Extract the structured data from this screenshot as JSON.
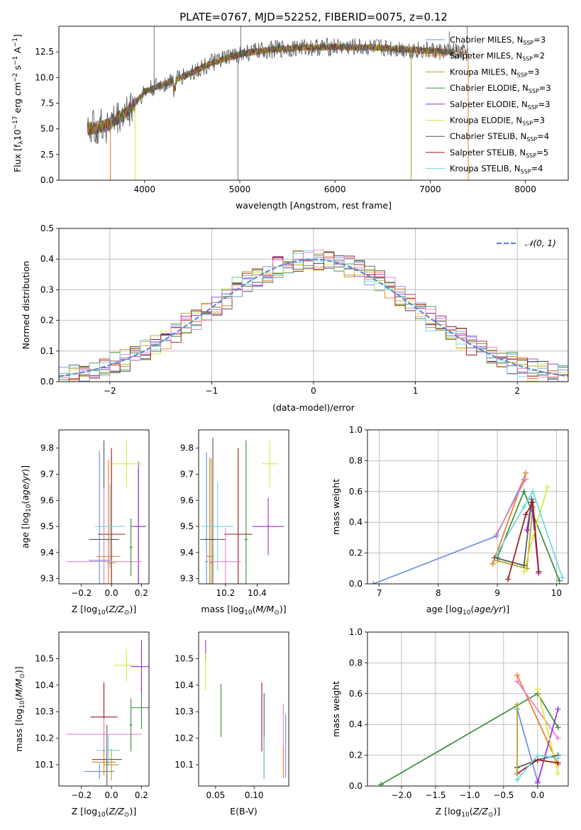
{
  "figure": {
    "title": "PLATE=0767, MJD=52252, FIBERID=0075, z=0.12"
  },
  "colors": {
    "chabrier_miles": "#6a8ee0",
    "salpeter_miles": "#ef7a1d",
    "kroupa_miles": "#b3a02a",
    "chabrier_elodie": "#3b8c3b",
    "salpeter_elodie": "#9b2ec9",
    "kroupa_elodie": "#d4ea3c",
    "chabrier_stelib": "#555555",
    "salpeter_stelib": "#a01818",
    "kroupa_stelib": "#6fd6e0",
    "normal": "#5b8ad8",
    "grid": "#b0b0b0"
  },
  "chart_data": [
    {
      "id": "spectrum",
      "type": "line",
      "title": "",
      "xlabel": "wavelength [Angstrom, rest frame]",
      "ylabel": "Flux [f_λ 10^-17 erg cm^-2 s^-1 A^-1]",
      "xlim": [
        3100,
        8450
      ],
      "ylim": [
        0,
        15
      ],
      "xticks": [
        4000,
        5000,
        6000,
        7000,
        8000
      ],
      "yticks": [
        0.0,
        2.5,
        5.0,
        7.5,
        10.0,
        12.5
      ],
      "grid": false,
      "legend_position": "top-right",
      "legend": [
        {
          "text": "Chabrier MILES, N_SSP=3",
          "color_key": "chabrier_miles"
        },
        {
          "text": "Salpeter MILES, N_SSP=2",
          "color_key": "salpeter_miles"
        },
        {
          "text": "Kroupa MILES, N_SSP=3",
          "color_key": "kroupa_miles"
        },
        {
          "text": "Chabrier ELODIE, N_SSP=3",
          "color_key": "chabrier_elodie"
        },
        {
          "text": "Salpeter ELODIE, N_SSP=3",
          "color_key": "salpeter_elodie"
        },
        {
          "text": "Kroupa ELODIE, N_SSP=3",
          "color_key": "kroupa_elodie"
        },
        {
          "text": "Chabrier STELIB, N_SSP=4",
          "color_key": "chabrier_stelib"
        },
        {
          "text": "Salpeter STELIB, N_SSP=5",
          "color_key": "salpeter_stelib"
        },
        {
          "text": "Kroupa STELIB, N_SSP=4",
          "color_key": "kroupa_stelib"
        }
      ],
      "continuum": {
        "x": [
          3400,
          3600,
          3800,
          3900,
          4000,
          4100,
          4300,
          4500,
          4700,
          5000,
          5300,
          5600,
          6000,
          6500,
          7000,
          7400
        ],
        "y": [
          5.0,
          5.3,
          6.5,
          7.5,
          8.6,
          9.0,
          9.7,
          10.5,
          11.4,
          12.3,
          12.7,
          12.9,
          13.0,
          12.9,
          12.6,
          12.4
        ]
      },
      "data_spikes": [
        {
          "x": 4100,
          "y": 15
        },
        {
          "x": 4980,
          "y": 0
        },
        {
          "x": 5010,
          "y": 15
        },
        {
          "x": 7200,
          "y": 14.5
        },
        {
          "x": 7390,
          "y": 15
        }
      ]
    },
    {
      "id": "residuals",
      "type": "histogram",
      "title": "",
      "xlabel": "(data-model)/error",
      "ylabel": "Normed distribution",
      "xlim": [
        -2.5,
        2.5
      ],
      "ylim": [
        0,
        0.5
      ],
      "xticks": [
        -2,
        -1,
        0,
        1,
        2
      ],
      "xticklabels": [
        "−2",
        "−1",
        "0",
        "1",
        "2"
      ],
      "yticks": [
        0.0,
        0.1,
        0.2,
        0.3,
        0.4,
        0.5
      ],
      "grid": true,
      "legend_position": "top-right",
      "bin_width": 0.1,
      "reference": {
        "label": "N(0,1)",
        "color_key": "normal"
      }
    },
    {
      "id": "age_vs_Z",
      "type": "errorbar",
      "xlabel": "Z [log10(Z/Z⊙)]",
      "ylabel": "age [log10(age/yr)]",
      "xlim": [
        -0.35,
        0.25
      ],
      "ylim": [
        9.28,
        9.87
      ],
      "xticks": [
        -0.2,
        0.0,
        0.2
      ],
      "xticklabels": [
        "−0.2",
        "0.0",
        "0.2"
      ],
      "yticks": [
        9.3,
        9.4,
        9.5,
        9.6,
        9.7,
        9.8
      ],
      "grid": false,
      "points": [
        {
          "c": "chabrier_miles",
          "x": -0.08,
          "xe": 0.07,
          "y": 9.37,
          "ye": 0.42
        },
        {
          "c": "salpeter_miles",
          "x": -0.02,
          "xe": 0.08,
          "y": 9.385,
          "ye": 0.37
        },
        {
          "c": "kroupa_miles",
          "x": 0.0,
          "xe": 0.03,
          "y": 9.36,
          "ye": 0.4
        },
        {
          "c": "chabrier_elodie",
          "x": 0.18,
          "xe": 0.05,
          "y": 9.5,
          "ye": 0.22
        },
        {
          "c": "salpeter_elodie",
          "x": 0.18,
          "xe": 0.05,
          "y": 9.5,
          "ye": 0.25
        },
        {
          "c": "kroupa_elodie",
          "x": 0.1,
          "xe": 0.1,
          "y": 9.74,
          "ye": 0.09
        },
        {
          "c": "chabrier_stelib",
          "x": -0.05,
          "xe": 0.1,
          "y": 9.45,
          "ye": 0.38
        },
        {
          "c": "salpeter_stelib",
          "x": 0.0,
          "xe": 0.09,
          "y": 9.47,
          "ye": 0.33
        },
        {
          "c": "kroupa_stelib",
          "x": -0.01,
          "xe": 0.1,
          "y": 9.5,
          "ye": 0.16
        },
        {
          "c": "pink",
          "x": -0.05,
          "xe": 0.25,
          "y": 9.365,
          "ye": 0.28
        },
        {
          "c": "chabrier_elodie",
          "x": 0.13,
          "xe": 0.01,
          "y": 9.42,
          "ye": 0.11
        }
      ]
    },
    {
      "id": "age_vs_mass",
      "type": "errorbar",
      "xlabel": "mass [log10(M/M⊙)]",
      "ylabel": "",
      "xlim": [
        10.03,
        10.6
      ],
      "ylim": [
        9.28,
        9.87
      ],
      "xticks": [
        10.2,
        10.4
      ],
      "yticks": [
        9.3,
        9.4,
        9.5,
        9.6,
        9.7,
        9.8
      ],
      "grid": false,
      "points": [
        {
          "c": "chabrier_miles",
          "x": 10.08,
          "xe": 0.01,
          "y": 9.365,
          "ye": 0.42
        },
        {
          "c": "salpeter_miles",
          "x": 10.1,
          "xe": 0.02,
          "y": 9.385,
          "ye": 0.38
        },
        {
          "c": "kroupa_miles",
          "x": 10.11,
          "xe": 0.01,
          "y": 9.36,
          "ye": 0.4
        },
        {
          "c": "chabrier_elodie",
          "x": 10.33,
          "xe": 0.01,
          "y": 9.45,
          "ye": 0.38
        },
        {
          "c": "salpeter_elodie",
          "x": 10.47,
          "xe": 0.1,
          "y": 9.5,
          "ye": 0.11
        },
        {
          "c": "kroupa_elodie",
          "x": 10.48,
          "xe": 0.05,
          "y": 9.74,
          "ye": 0.09
        },
        {
          "c": "chabrier_stelib",
          "x": 10.12,
          "xe": 0.08,
          "y": 9.45,
          "ye": 0.39
        },
        {
          "c": "salpeter_stelib",
          "x": 10.28,
          "xe": 0.09,
          "y": 9.47,
          "ye": 0.33
        },
        {
          "c": "kroupa_stelib",
          "x": 10.15,
          "xe": 0.1,
          "y": 9.5,
          "ye": 0.17
        },
        {
          "c": "pink",
          "x": 10.2,
          "xe": 0.1,
          "y": 9.365,
          "ye": 0.13
        }
      ]
    },
    {
      "id": "weight_vs_age",
      "type": "line",
      "xlabel": "age [log10(age/yr)]",
      "ylabel": "mass weight",
      "xlim": [
        6.8,
        10.2
      ],
      "ylim": [
        0,
        1
      ],
      "xticks": [
        7,
        8,
        9,
        10
      ],
      "yticks": [
        0.0,
        0.2,
        0.4,
        0.6,
        0.8,
        1.0
      ],
      "grid": true,
      "series": [
        {
          "c": "chabrier_miles",
          "x": [
            6.9,
            8.98,
            9.45
          ],
          "y": [
            0.0,
            0.31,
            0.68
          ]
        },
        {
          "c": "salpeter_miles",
          "x": [
            8.92,
            9.48
          ],
          "y": [
            0.13,
            0.72
          ]
        },
        {
          "c": "kroupa_miles",
          "x": [
            9.0,
            9.5,
            9.6
          ],
          "y": [
            0.15,
            0.1,
            0.5
          ]
        },
        {
          "c": "chabrier_elodie",
          "x": [
            9.0,
            9.45,
            10.05
          ],
          "y": [
            0.17,
            0.6,
            0.02
          ]
        },
        {
          "c": "salpeter_elodie",
          "x": [
            9.5,
            9.58,
            9.7
          ],
          "y": [
            0.35,
            0.53,
            0.07
          ]
        },
        {
          "c": "kroupa_elodie",
          "x": [
            9.45,
            9.6,
            9.85
          ],
          "y": [
            0.08,
            0.3,
            0.63
          ]
        },
        {
          "c": "chabrier_stelib",
          "x": [
            8.95,
            9.45,
            9.58
          ],
          "y": [
            0.17,
            0.12,
            0.55
          ]
        },
        {
          "c": "salpeter_stelib",
          "x": [
            9.18,
            9.48,
            9.6,
            9.7
          ],
          "y": [
            0.03,
            0.45,
            0.53,
            0.08
          ]
        },
        {
          "c": "kroupa_stelib",
          "x": [
            9.0,
            9.45,
            9.6,
            10.1
          ],
          "y": [
            0.2,
            0.5,
            0.6,
            0.04
          ]
        },
        {
          "c": "pink",
          "x": [
            8.98,
            9.48
          ],
          "y": [
            0.32,
            0.68
          ]
        }
      ]
    },
    {
      "id": "mass_vs_Z",
      "type": "errorbar",
      "xlabel": "Z [log10(Z/Z⊙)]",
      "ylabel": "mass [log10(M/M⊙)]",
      "xlim": [
        -0.35,
        0.25
      ],
      "ylim": [
        10.02,
        10.6
      ],
      "xticks": [
        -0.2,
        0.0,
        0.2
      ],
      "xticklabels": [
        "−0.2",
        "0.0",
        "0.2"
      ],
      "yticks": [
        10.1,
        10.2,
        10.3,
        10.4,
        10.5
      ],
      "grid": false,
      "points": [
        {
          "c": "chabrier_miles",
          "x": -0.08,
          "xe": 0.1,
          "y": 10.075,
          "ye": 0.03
        },
        {
          "c": "salpeter_miles",
          "x": -0.05,
          "xe": 0.08,
          "y": 10.11,
          "ye": 0.05
        },
        {
          "c": "kroupa_miles",
          "x": 0.0,
          "xe": 0.05,
          "y": 10.1,
          "ye": 0.06
        },
        {
          "c": "chabrier_elodie",
          "x": 0.2,
          "xe": 0.07,
          "y": 10.315,
          "ye": 0.08
        },
        {
          "c": "salpeter_elodie",
          "x": 0.2,
          "xe": 0.07,
          "y": 10.47,
          "ye": 0.1
        },
        {
          "c": "kroupa_elodie",
          "x": 0.1,
          "xe": 0.08,
          "y": 10.475,
          "ye": 0.06
        },
        {
          "c": "chabrier_stelib",
          "x": -0.03,
          "xe": 0.1,
          "y": 10.12,
          "ye": 0.13
        },
        {
          "c": "salpeter_stelib",
          "x": -0.05,
          "xe": 0.09,
          "y": 10.28,
          "ye": 0.13
        },
        {
          "c": "kroupa_stelib",
          "x": -0.02,
          "xe": 0.08,
          "y": 10.155,
          "ye": 0.06
        },
        {
          "c": "pink",
          "x": -0.05,
          "xe": 0.25,
          "y": 10.215,
          "ye": 0.06
        },
        {
          "c": "chabrier_elodie",
          "x": 0.13,
          "xe": 0.01,
          "y": 10.25,
          "ye": 0.1
        }
      ]
    },
    {
      "id": "mass_vs_ebv",
      "type": "errorbar",
      "xlabel": "E(B-V)",
      "ylabel": "",
      "xlim": [
        0.028,
        0.145
      ],
      "ylim": [
        10.02,
        10.6
      ],
      "xticks": [
        0.05,
        0.1
      ],
      "xticklabels": [
        "0.05",
        "0.10"
      ],
      "yticks": [
        10.1,
        10.2,
        10.3,
        10.4,
        10.5
      ],
      "grid": false,
      "points": [
        {
          "c": "salpeter_elodie",
          "x": 0.037,
          "xe": 0.0,
          "y": 10.53,
          "ye": 0.04
        },
        {
          "c": "kroupa_elodie",
          "x": 0.037,
          "xe": 0.0,
          "y": 10.45,
          "ye": 0.07
        },
        {
          "c": "chabrier_elodie",
          "x": 0.057,
          "xe": 0.0,
          "y": 10.305,
          "ye": 0.1
        },
        {
          "c": "salpeter_stelib",
          "x": 0.11,
          "xe": 0.0,
          "y": 10.28,
          "ye": 0.13
        },
        {
          "c": "chabrier_stelib",
          "x": 0.113,
          "xe": 0.0,
          "y": 10.21,
          "ye": 0.16
        },
        {
          "c": "kroupa_stelib",
          "x": 0.113,
          "xe": 0.0,
          "y": 10.125,
          "ye": 0.08
        },
        {
          "c": "pink",
          "x": 0.138,
          "xe": 0.0,
          "y": 10.22,
          "ye": 0.11
        },
        {
          "c": "salpeter_miles",
          "x": 0.138,
          "xe": 0.0,
          "y": 10.11,
          "ye": 0.06
        },
        {
          "c": "chabrier_miles",
          "x": 0.141,
          "xe": 0.0,
          "y": 10.17,
          "ye": 0.12
        }
      ]
    },
    {
      "id": "weight_vs_Z",
      "type": "line",
      "xlabel": "Z [log10(Z/Z⊙)]",
      "ylabel": "mass weight",
      "xlim": [
        -2.5,
        0.45
      ],
      "ylim": [
        0,
        1
      ],
      "xticks": [
        -2.0,
        -1.5,
        -1.0,
        -0.5,
        0.0
      ],
      "xticklabels": [
        "−2.0",
        "−1.5",
        "−1.0",
        "−0.5",
        "0.0"
      ],
      "yticks": [
        0.0,
        0.2,
        0.4,
        0.6,
        0.8,
        1.0
      ],
      "grid": true,
      "series": [
        {
          "c": "chabrier_elodie",
          "x": [
            -2.3,
            0.0,
            0.3
          ],
          "y": [
            0.01,
            0.6,
            0.38
          ]
        },
        {
          "c": "chabrier_miles",
          "x": [
            -0.3,
            0.0
          ],
          "y": [
            0.5,
            0.03
          ]
        },
        {
          "c": "salpeter_miles",
          "x": [
            -0.3,
            0.3
          ],
          "y": [
            0.72,
            0.14
          ]
        },
        {
          "c": "pink",
          "x": [
            -0.3,
            0.3
          ],
          "y": [
            0.68,
            0.31
          ]
        },
        {
          "c": "salpeter_elodie",
          "x": [
            0.0,
            0.3
          ],
          "y": [
            0.02,
            0.5
          ]
        },
        {
          "c": "kroupa_elodie",
          "x": [
            0.0,
            0.3
          ],
          "y": [
            0.63,
            0.08
          ]
        },
        {
          "c": "chabrier_stelib",
          "x": [
            -0.3,
            0.0,
            0.3
          ],
          "y": [
            0.12,
            0.17,
            0.2
          ]
        },
        {
          "c": "salpeter_stelib",
          "x": [
            -0.3,
            0.0,
            0.3
          ],
          "y": [
            0.08,
            0.17,
            0.15
          ]
        },
        {
          "c": "kroupa_stelib",
          "x": [
            -0.3,
            0.0,
            0.3
          ],
          "y": [
            0.04,
            0.2,
            0.18
          ]
        },
        {
          "c": "kroupa_miles",
          "x": [
            -0.3,
            -0.3
          ],
          "y": [
            0.53,
            0.08
          ]
        }
      ]
    }
  ],
  "extra_colors": {
    "pink": "#e883c4"
  }
}
